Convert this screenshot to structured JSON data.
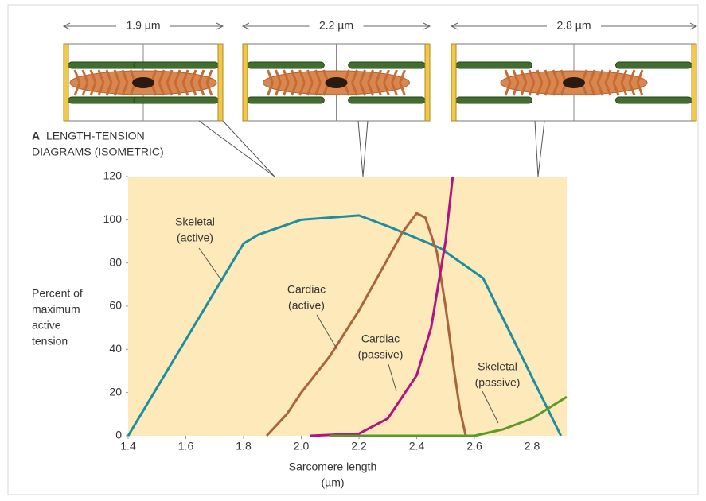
{
  "chart_data": {
    "type": "line",
    "panel_label": "A",
    "title": [
      "LENGTH-TENSION",
      "DIAGRAMS (ISOMETRIC)"
    ],
    "diagram_labels": [
      "1.9 µm",
      "2.2 µm",
      "2.8 µm"
    ],
    "y_label": [
      "Percent of",
      "maximum",
      "active",
      "tension"
    ],
    "x_label": [
      "Sarcomere length",
      "(µm)"
    ],
    "xlim": [
      1.4,
      2.92
    ],
    "ylim": [
      0,
      120
    ],
    "xticks": [
      1.4,
      1.6,
      1.8,
      {
        "value": 2,
        "label": "2.0"
      },
      2.2,
      2.4,
      2.6,
      2.8
    ],
    "yticks": [
      0,
      20,
      40,
      60,
      80,
      100,
      120
    ],
    "grid": false,
    "background": "#fde9b9",
    "series": [
      {
        "name": [
          "Skeletal",
          "(active)"
        ],
        "color": "#1b8fa0",
        "x": [
          1.4,
          1.8,
          1.85,
          2.0,
          2.2,
          2.3,
          2.48,
          2.63,
          2.9
        ],
        "values": [
          0,
          89,
          93,
          100,
          102,
          97,
          87,
          73,
          0
        ]
      },
      {
        "name": [
          "Cardiac",
          "(active)"
        ],
        "color": "#a8653e",
        "x": [
          1.88,
          1.95,
          2.0,
          2.1,
          2.2,
          2.3,
          2.35,
          2.4,
          2.43,
          2.47,
          2.5,
          2.53,
          2.55,
          2.57
        ],
        "values": [
          0,
          10,
          20,
          37,
          58,
          82,
          94,
          103,
          101,
          85,
          60,
          30,
          12,
          0
        ]
      },
      {
        "name": [
          "Cardiac",
          "(passive)"
        ],
        "color": "#b0157e",
        "x": [
          2.03,
          2.2,
          2.3,
          2.4,
          2.45,
          2.5,
          2.525
        ],
        "values": [
          0,
          1,
          8,
          28,
          50,
          90,
          120
        ]
      },
      {
        "name": [
          "Skeletal",
          "(passive)"
        ],
        "color": "#5a9a2a",
        "x": [
          2.1,
          2.6,
          2.7,
          2.8,
          2.92
        ],
        "values": [
          0,
          0,
          3,
          8,
          18
        ]
      }
    ]
  }
}
